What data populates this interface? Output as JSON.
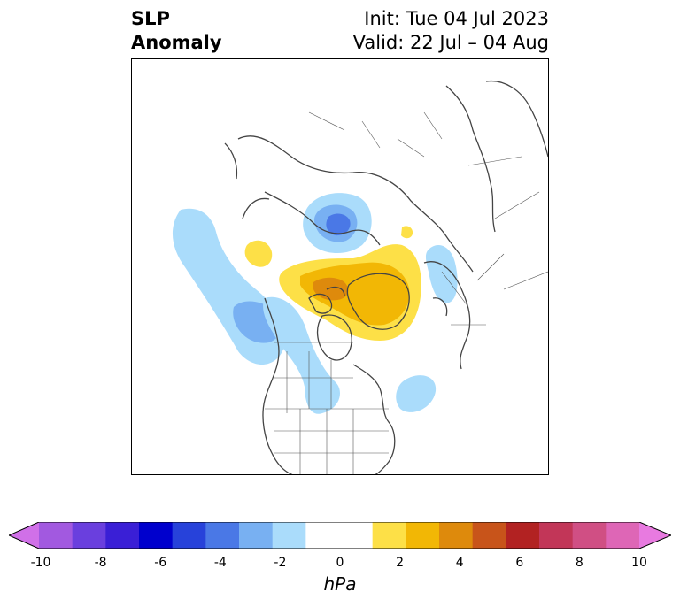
{
  "title": {
    "left_line1": "SLP",
    "left_line2": "Anomaly",
    "right_line1": "Init: Tue 04 Jul 2023",
    "right_line2": "Valid: 22 Jul – 04 Aug"
  },
  "colorbar": {
    "unit": "hPa",
    "ticks": [
      "-10",
      "-8",
      "-6",
      "-4",
      "-2",
      "0",
      "2",
      "4",
      "6",
      "8",
      "10"
    ],
    "colors": [
      "#a259e0",
      "#6a3fde",
      "#3a1fd6",
      "#0000cd",
      "#2742da",
      "#4a78e6",
      "#78b0f2",
      "#aadcfb",
      "#ffffff",
      "#ffffff",
      "#fde047",
      "#f2b705",
      "#de8a0c",
      "#c8541a",
      "#b22222",
      "#c23658",
      "#d04f84",
      "#de66b6"
    ],
    "extend_low_color": "#d070e8",
    "extend_high_color": "#e87ae0"
  }
}
